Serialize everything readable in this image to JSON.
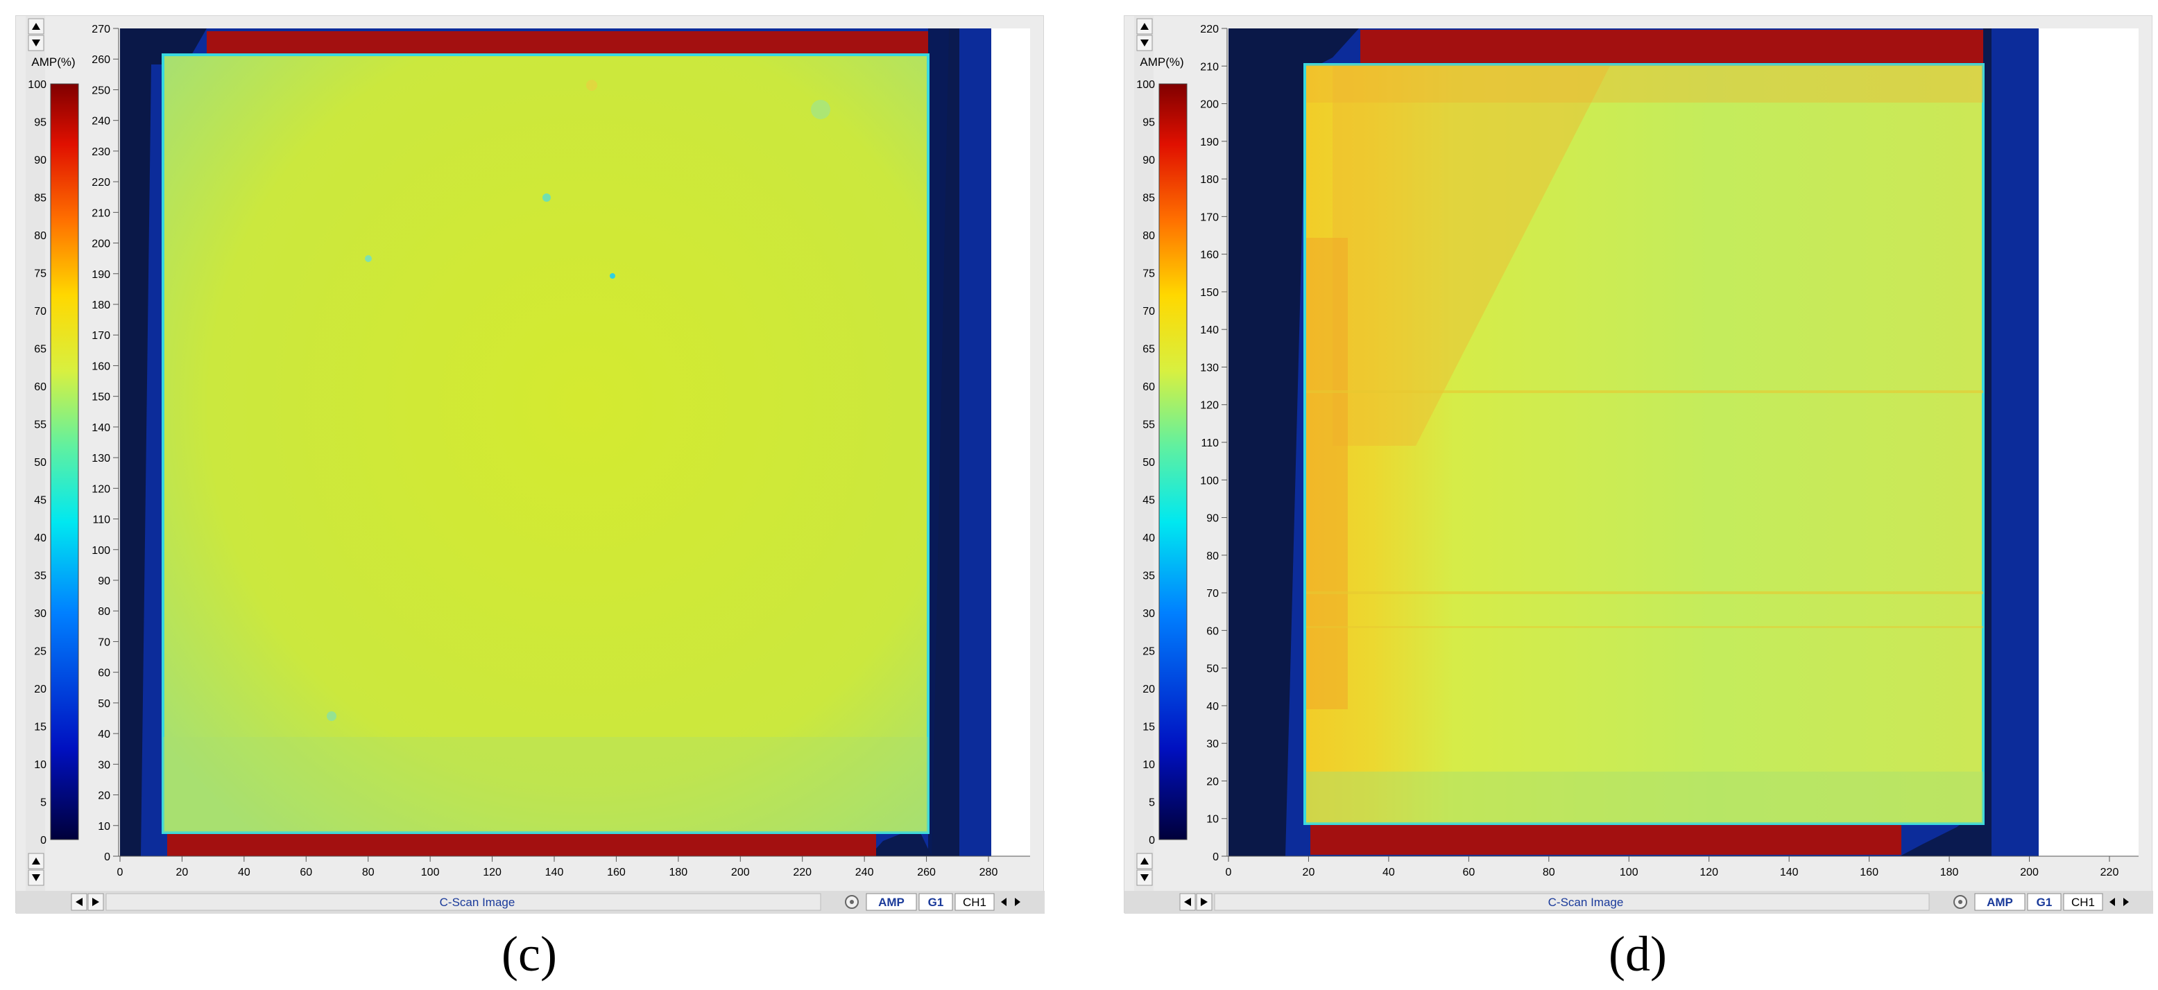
{
  "panels": [
    {
      "id": "c",
      "legend": {
        "title": "AMP(%)",
        "ticks": [
          0,
          5,
          10,
          15,
          20,
          25,
          30,
          35,
          40,
          45,
          50,
          55,
          60,
          65,
          70,
          75,
          80,
          85,
          90,
          95,
          100
        ]
      },
      "y_axis": {
        "min": 0,
        "max": 270,
        "ticks": [
          0,
          10,
          20,
          30,
          40,
          50,
          60,
          70,
          80,
          90,
          100,
          110,
          120,
          130,
          140,
          150,
          160,
          170,
          180,
          190,
          200,
          210,
          220,
          230,
          240,
          250,
          260,
          270
        ]
      },
      "x_axis": {
        "min": 0,
        "max": 280,
        "ticks": [
          0,
          20,
          40,
          60,
          80,
          100,
          120,
          140,
          160,
          180,
          200,
          220,
          240,
          260,
          280
        ]
      },
      "footer": {
        "label": "C-Scan Image",
        "tab_amp": "AMP",
        "tab_g1": "G1",
        "tab_ch1": "CH1"
      },
      "caption": "(c)"
    },
    {
      "id": "d",
      "legend": {
        "title": "AMP(%)",
        "ticks": [
          0,
          5,
          10,
          15,
          20,
          25,
          30,
          35,
          40,
          45,
          50,
          55,
          60,
          65,
          70,
          75,
          80,
          85,
          90,
          95,
          100
        ]
      },
      "y_axis": {
        "min": 0,
        "max": 220,
        "ticks": [
          0,
          10,
          20,
          30,
          40,
          50,
          60,
          70,
          80,
          90,
          100,
          110,
          120,
          130,
          140,
          150,
          160,
          170,
          180,
          190,
          200,
          210,
          220
        ]
      },
      "x_axis": {
        "min": 0,
        "max": 220,
        "ticks": [
          0,
          20,
          40,
          60,
          80,
          100,
          120,
          140,
          160,
          180,
          200,
          220
        ]
      },
      "footer": {
        "label": "C-Scan Image",
        "tab_amp": "AMP",
        "tab_g1": "G1",
        "tab_ch1": "CH1"
      },
      "caption": "(d)"
    }
  ],
  "colors": {
    "specimen_c": "#cfe838",
    "specimen_d": "#c9ec58",
    "dark_red": "#a31010",
    "blue_frame": "#0c2c9a",
    "dark_navy": "#0a1a48",
    "tab_blue": "#1a3a9a"
  }
}
